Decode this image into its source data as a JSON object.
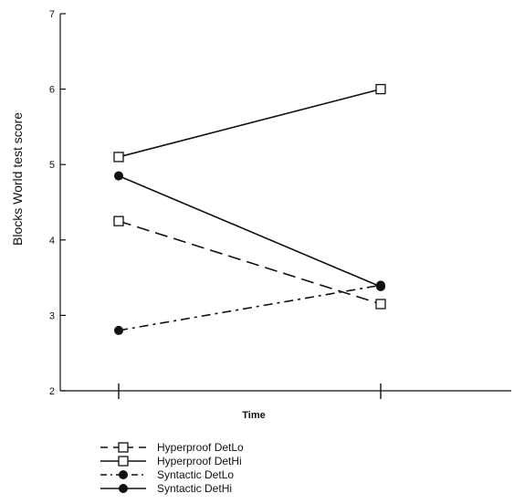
{
  "chart_data": {
    "type": "line",
    "title": "",
    "xlabel": "Time",
    "ylabel": "Blocks World test score",
    "categories": [
      "",
      ""
    ],
    "ylim": [
      2,
      7
    ],
    "yticks": [
      "2",
      "3",
      "4",
      "5",
      "6",
      "7"
    ],
    "grid": false,
    "legend_position": "bottom-left",
    "series": [
      {
        "name": "Hyperproof DetLo",
        "values": [
          4.25,
          3.15
        ],
        "marker": "open-square",
        "line": "dashed"
      },
      {
        "name": "Hyperproof DetHi",
        "values": [
          5.1,
          6.0
        ],
        "marker": "open-square",
        "line": "solid"
      },
      {
        "name": "Syntactic DetLo",
        "values": [
          2.8,
          3.4
        ],
        "marker": "filled-circle",
        "line": "dash-dot"
      },
      {
        "name": "Syntactic DetHi",
        "values": [
          4.85,
          3.38
        ],
        "marker": "filled-circle",
        "line": "solid"
      }
    ],
    "colors": {
      "ink": "#111111",
      "background": "#ffffff"
    }
  }
}
